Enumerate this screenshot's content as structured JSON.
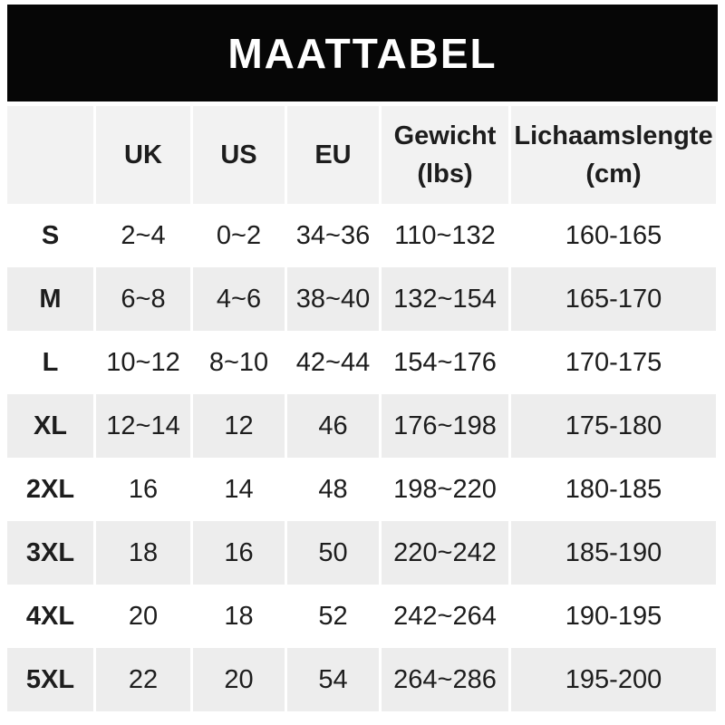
{
  "title": "MAATTABEL",
  "table": {
    "headers": [
      {
        "line1": "",
        "line2": ""
      },
      {
        "line1": "UK",
        "line2": ""
      },
      {
        "line1": "US",
        "line2": ""
      },
      {
        "line1": "EU",
        "line2": ""
      },
      {
        "line1": "Gewicht",
        "line2": "(lbs)"
      },
      {
        "line1": "Lichaamslengte",
        "line2": "(cm)"
      }
    ],
    "rows": [
      {
        "size": "S",
        "uk": "2~4",
        "us": "0~2",
        "eu": "34~36",
        "gewicht": "110~132",
        "lengte": "160-165"
      },
      {
        "size": "M",
        "uk": "6~8",
        "us": "4~6",
        "eu": "38~40",
        "gewicht": "132~154",
        "lengte": "165-170"
      },
      {
        "size": "L",
        "uk": "10~12",
        "us": "8~10",
        "eu": "42~44",
        "gewicht": "154~176",
        "lengte": "170-175"
      },
      {
        "size": "XL",
        "uk": "12~14",
        "us": "12",
        "eu": "46",
        "gewicht": "176~198",
        "lengte": "175-180"
      },
      {
        "size": "2XL",
        "uk": "16",
        "us": "14",
        "eu": "48",
        "gewicht": "198~220",
        "lengte": "180-185"
      },
      {
        "size": "3XL",
        "uk": "18",
        "us": "16",
        "eu": "50",
        "gewicht": "220~242",
        "lengte": "185-190"
      },
      {
        "size": "4XL",
        "uk": "20",
        "us": "18",
        "eu": "52",
        "gewicht": "242~264",
        "lengte": "190-195"
      },
      {
        "size": "5XL",
        "uk": "22",
        "us": "20",
        "eu": "54",
        "gewicht": "264~286",
        "lengte": "195-200"
      }
    ]
  },
  "colors": {
    "banner_bg": "#060606",
    "banner_text": "#ffffff",
    "header_bg": "#f2f2f2",
    "row_alt_bg": "#ededed",
    "text": "#1d1d1d"
  }
}
